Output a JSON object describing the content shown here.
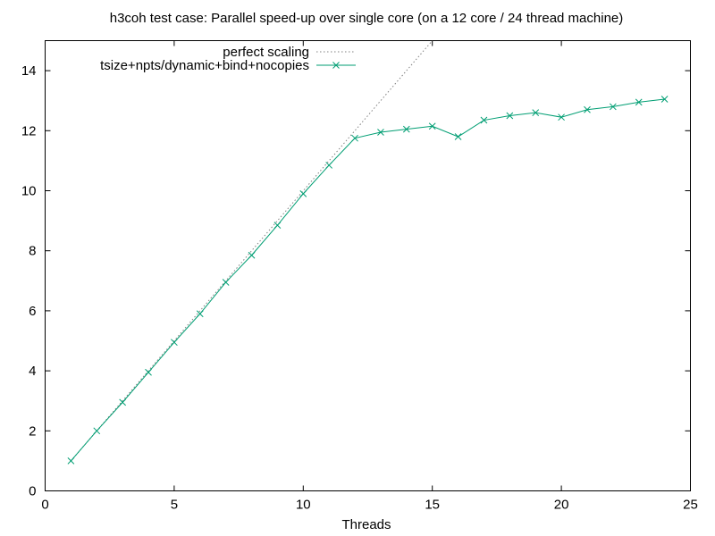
{
  "chart_data": {
    "type": "line",
    "title": "h3coh test case: Parallel speed-up over single core (on a 12 core / 24 thread machine)",
    "xlabel": "Threads",
    "ylabel": "",
    "xlim": [
      0,
      25
    ],
    "ylim": [
      0,
      15
    ],
    "xticks": [
      0,
      5,
      10,
      15,
      20,
      25
    ],
    "yticks": [
      0,
      2,
      4,
      6,
      8,
      10,
      12,
      14
    ],
    "grid": false,
    "legend_position": "top-left",
    "series": [
      {
        "name": "perfect scaling",
        "style": "dotted",
        "color": "#808080",
        "x": [
          1,
          15
        ],
        "y": [
          1,
          15
        ]
      },
      {
        "name": "tsize+npts/dynamic+bind+nocopies",
        "style": "line-x-markers",
        "color": "#009e73",
        "x": [
          1,
          2,
          3,
          4,
          5,
          6,
          7,
          8,
          9,
          10,
          11,
          12,
          13,
          14,
          15,
          16,
          17,
          18,
          19,
          20,
          21,
          22,
          23,
          24
        ],
        "y": [
          1.0,
          2.0,
          2.95,
          3.95,
          4.95,
          5.9,
          6.95,
          7.85,
          8.85,
          9.9,
          10.85,
          11.75,
          11.95,
          12.05,
          12.15,
          11.8,
          12.35,
          12.5,
          12.6,
          12.45,
          12.7,
          12.8,
          12.95,
          13.05
        ]
      }
    ]
  }
}
